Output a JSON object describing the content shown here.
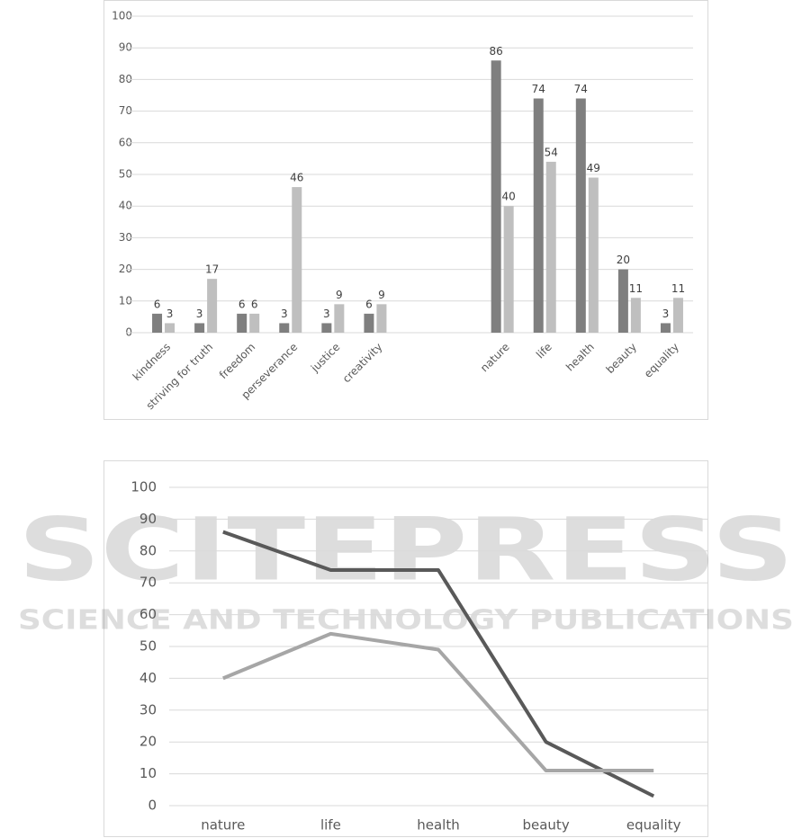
{
  "watermark": {
    "title": "SCITEPRESS",
    "subtitle": "SCIENCE AND TECHNOLOGY PUBLICATIONS"
  },
  "chart_data": [
    {
      "type": "bar",
      "categories": [
        "kindness",
        "striving for truth",
        "freedom",
        "perseverance",
        "justice",
        "creativity",
        null,
        null,
        "nature",
        "life",
        "health",
        "beauty",
        "equality"
      ],
      "series": [
        {
          "color": "#7f7f7f",
          "values": [
            6,
            3,
            6,
            3,
            3,
            6,
            null,
            null,
            86,
            74,
            74,
            20,
            3
          ]
        },
        {
          "color": "#bfbfbf",
          "values": [
            3,
            17,
            6,
            46,
            9,
            9,
            null,
            null,
            40,
            54,
            49,
            11,
            11
          ]
        }
      ],
      "ylim": [
        0,
        100
      ],
      "yticks": [
        0,
        10,
        20,
        30,
        40,
        50,
        60,
        70,
        80,
        90,
        100
      ],
      "grid": true,
      "data_labels": true
    },
    {
      "type": "line",
      "categories": [
        "nature",
        "life",
        "health",
        "beauty",
        "equality"
      ],
      "series": [
        {
          "color": "#595959",
          "values": [
            86,
            74,
            74,
            20,
            3
          ]
        },
        {
          "color": "#a6a6a6",
          "values": [
            40,
            54,
            49,
            11,
            11
          ]
        }
      ],
      "ylim": [
        0,
        100
      ],
      "yticks": [
        0,
        10,
        20,
        30,
        40,
        50,
        60,
        70,
        80,
        90,
        100
      ],
      "grid": true
    }
  ]
}
